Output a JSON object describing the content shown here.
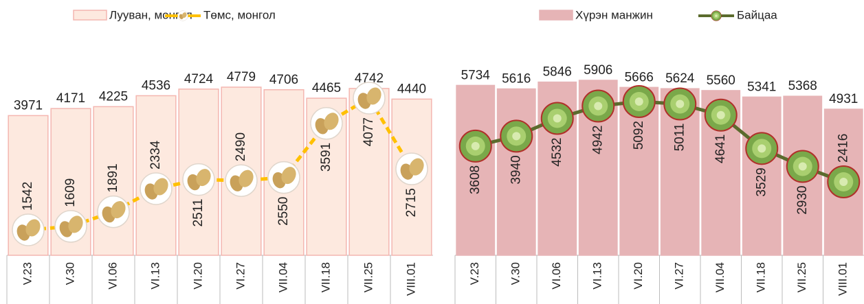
{
  "chart_data": [
    {
      "type": "bar",
      "categories": [
        "V.23",
        "V.30",
        "VI.06",
        "VI.13",
        "VI.20",
        "VI.27",
        "VII.04",
        "VII.18",
        "VII.25",
        "VIII.01"
      ],
      "series": [
        {
          "name": "Лууван, монгол",
          "type": "bar",
          "color": "#fde9df",
          "edgecolor": "#f4b6b0",
          "values": [
            3971,
            4171,
            4225,
            4536,
            4724,
            4779,
            4706,
            4465,
            4742,
            4440
          ]
        },
        {
          "name": "Төмс, монгол",
          "type": "line",
          "axis": "y2",
          "color": "#ffc000",
          "marker": "potato",
          "values": [
            1542,
            1609,
            1891,
            2334,
            2511,
            2490,
            2550,
            3591,
            4077,
            2715
          ]
        }
      ]
    },
    {
      "type": "bar",
      "categories": [
        "V.23",
        "V.30",
        "VI.06",
        "VI.13",
        "VI.20",
        "VI.27",
        "VII.04",
        "VII.18",
        "VII.25",
        "VIII.01"
      ],
      "series": [
        {
          "name": "Хүрэн манжин",
          "type": "bar",
          "color": "#e6b4b6",
          "edgecolor": "#e6b4b6",
          "values": [
            5734,
            5616,
            5846,
            5906,
            5666,
            5624,
            5560,
            5341,
            5368,
            4931
          ]
        },
        {
          "name": "Байцаа",
          "type": "line",
          "axis": "y2",
          "color": "#5b6b2d",
          "marker": "cabbage",
          "values": [
            3608,
            3940,
            4532,
            4942,
            5092,
            5011,
            4641,
            3529,
            2930,
            2416
          ]
        }
      ]
    }
  ]
}
